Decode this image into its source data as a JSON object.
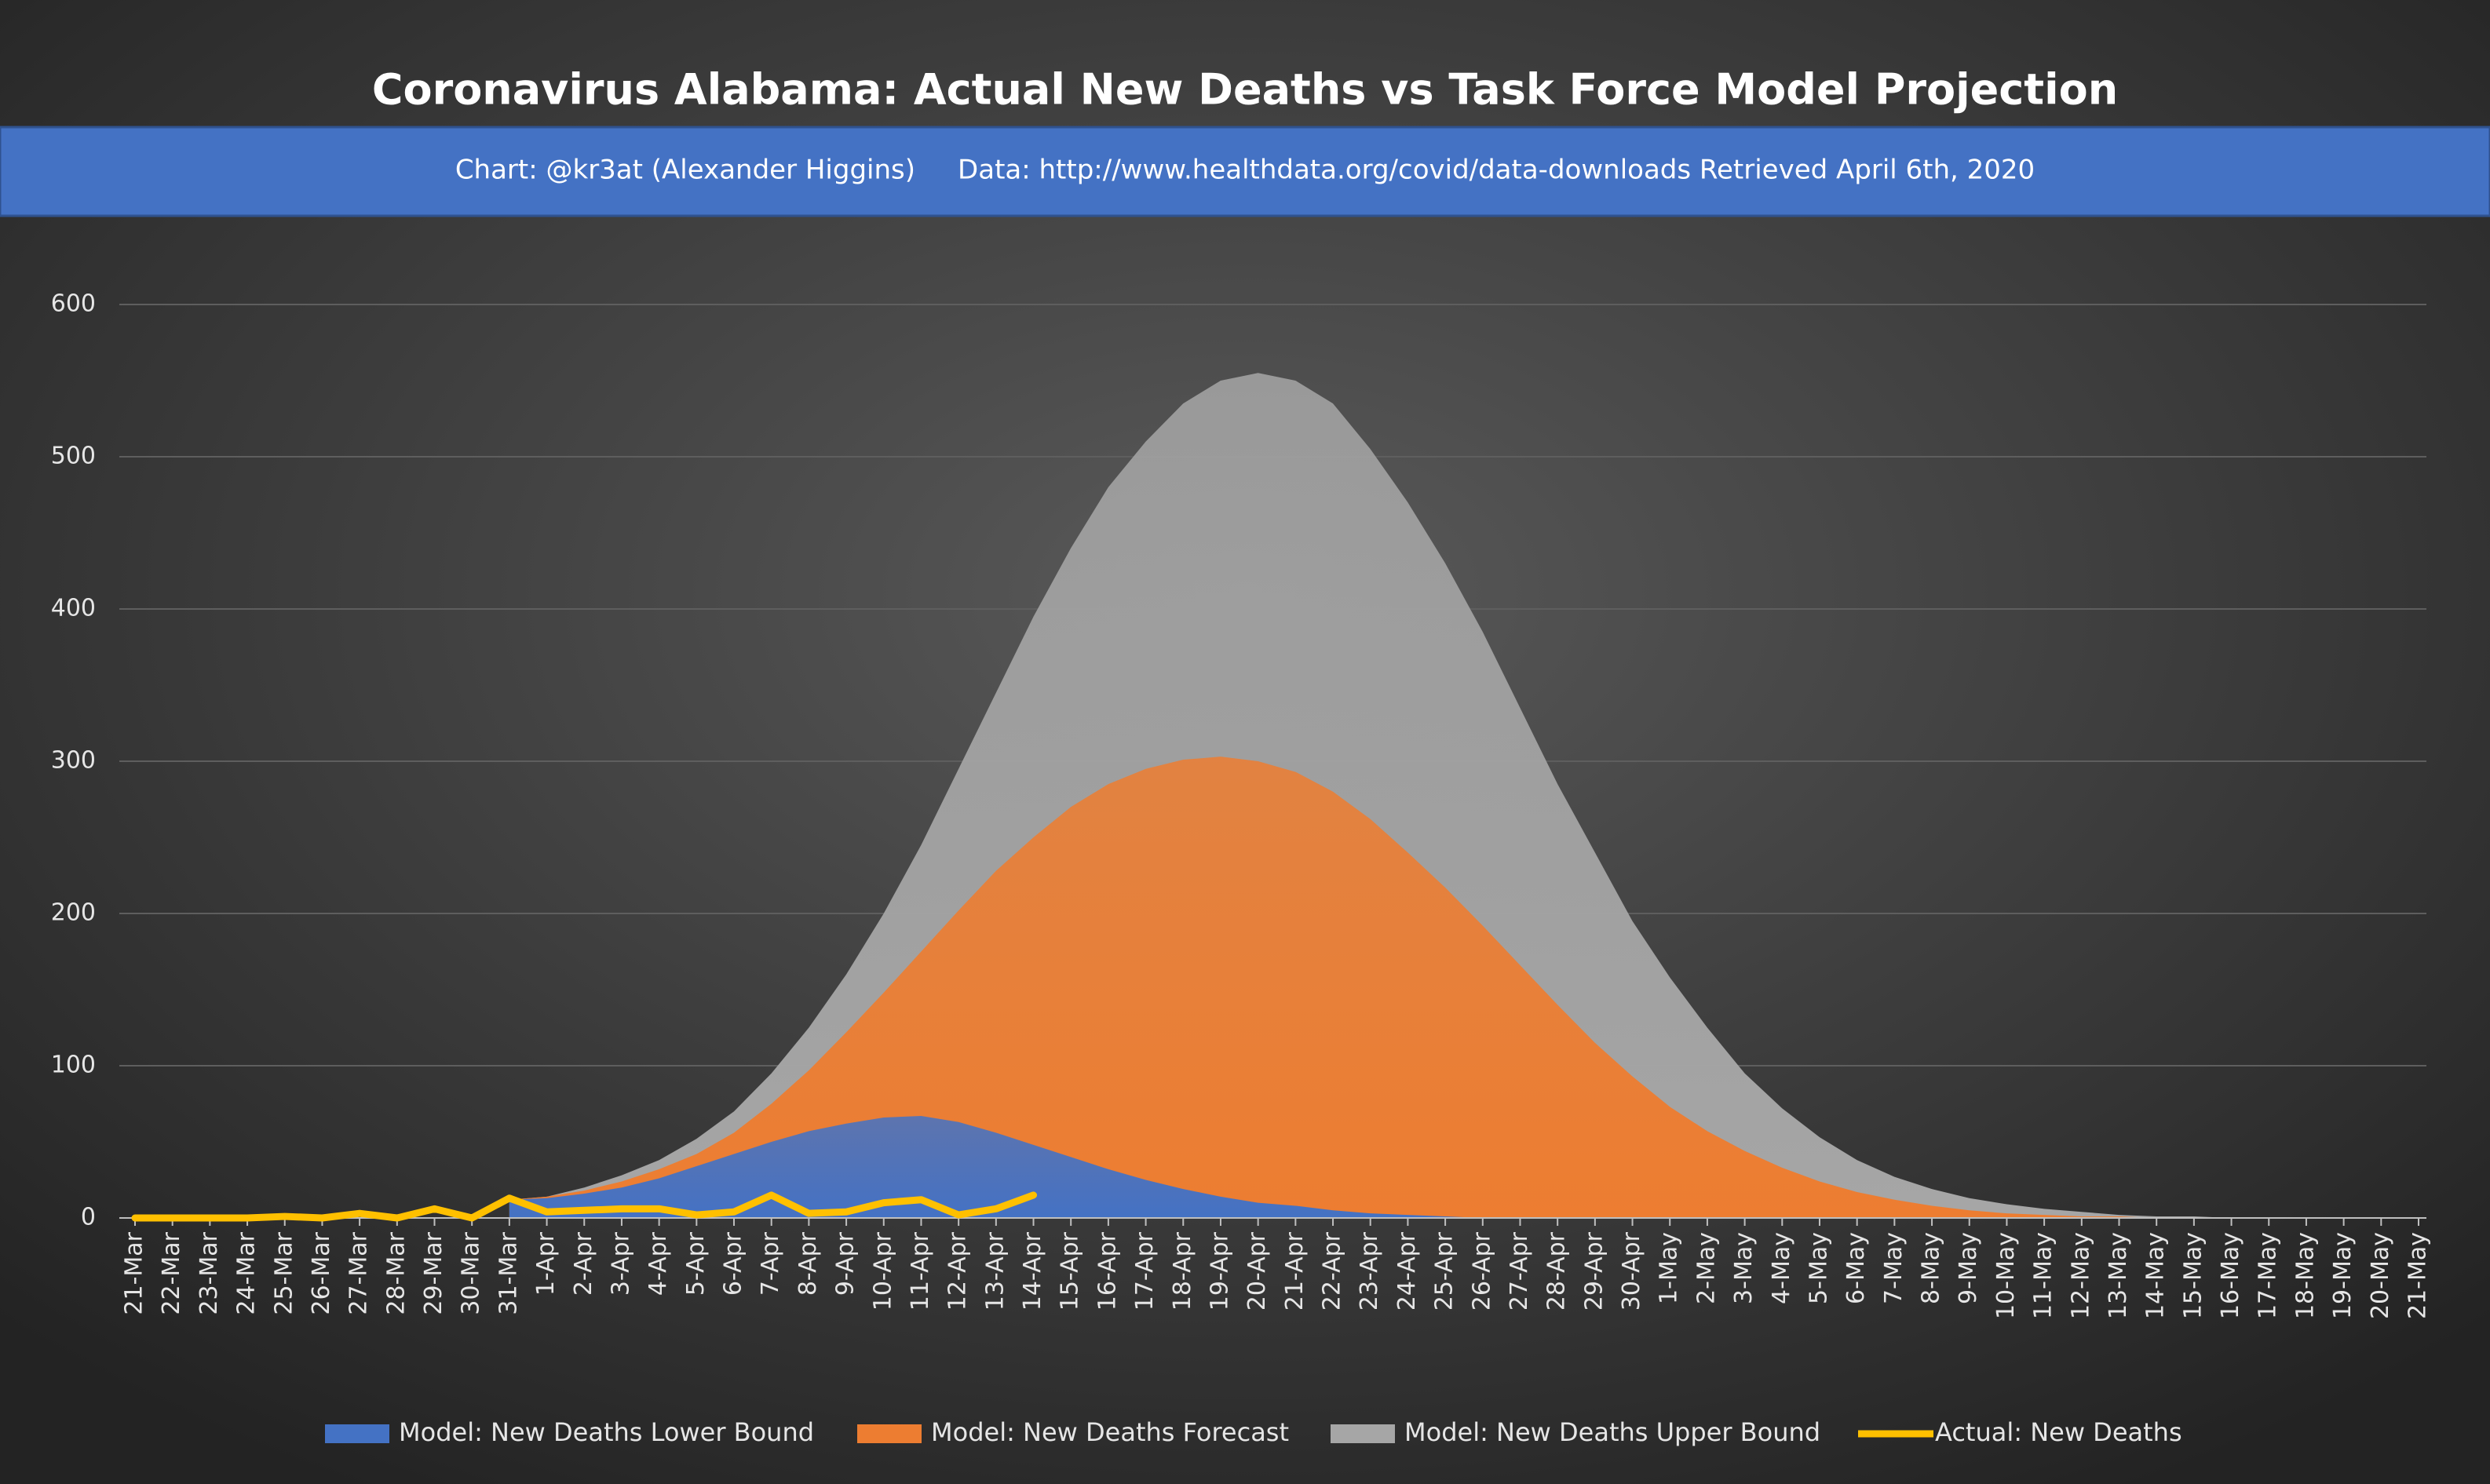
{
  "chart_data": {
    "type": "area",
    "title": "Coronavirus Alabama: Actual New Deaths vs Task Force Model Projection",
    "subtitle": "Chart: @kr3at (Alexander Higgins)     Data: http://www.healthdata.org/covid/data-downloads Retrieved April 6th, 2020",
    "categories": [
      "21-Mar",
      "22-Mar",
      "23-Mar",
      "24-Mar",
      "25-Mar",
      "26-Mar",
      "27-Mar",
      "28-Mar",
      "29-Mar",
      "30-Mar",
      "31-Mar",
      "1-Apr",
      "2-Apr",
      "3-Apr",
      "4-Apr",
      "5-Apr",
      "6-Apr",
      "7-Apr",
      "8-Apr",
      "9-Apr",
      "10-Apr",
      "11-Apr",
      "12-Apr",
      "13-Apr",
      "14-Apr",
      "15-Apr",
      "16-Apr",
      "17-Apr",
      "18-Apr",
      "19-Apr",
      "20-Apr",
      "21-Apr",
      "22-Apr",
      "23-Apr",
      "24-Apr",
      "25-Apr",
      "26-Apr",
      "27-Apr",
      "28-Apr",
      "29-Apr",
      "30-Apr",
      "1-May",
      "2-May",
      "3-May",
      "4-May",
      "5-May",
      "6-May",
      "7-May",
      "8-May",
      "9-May",
      "10-May",
      "11-May",
      "12-May",
      "13-May",
      "14-May",
      "15-May",
      "16-May",
      "17-May",
      "18-May",
      "19-May",
      "20-May",
      "21-May"
    ],
    "series": [
      {
        "name": "Model: New Deaths Lower Bound",
        "type": "area",
        "color": "#4472c4",
        "values": [
          null,
          null,
          null,
          null,
          null,
          null,
          null,
          null,
          null,
          null,
          12,
          13,
          16,
          20,
          26,
          34,
          42,
          50,
          57,
          62,
          66,
          67,
          63,
          56,
          48,
          40,
          32,
          25,
          19,
          14,
          10,
          8,
          5,
          3,
          2,
          1,
          0,
          0,
          0,
          0,
          0,
          0,
          0,
          0,
          0,
          0,
          0,
          0,
          0,
          0,
          0,
          0,
          0,
          0,
          0,
          0,
          0,
          0,
          0,
          0,
          0,
          0
        ]
      },
      {
        "name": "Model: New Deaths Forecast",
        "type": "area",
        "color": "#ed7d31",
        "values": [
          null,
          null,
          null,
          null,
          null,
          null,
          null,
          null,
          null,
          null,
          12,
          14,
          18,
          24,
          32,
          42,
          56,
          75,
          97,
          122,
          148,
          175,
          202,
          228,
          250,
          270,
          285,
          295,
          301,
          303,
          300,
          293,
          280,
          262,
          240,
          217,
          192,
          166,
          140,
          115,
          93,
          73,
          57,
          44,
          33,
          24,
          17,
          12,
          8,
          5,
          3,
          2,
          1,
          1,
          0,
          0,
          0,
          0,
          0,
          0,
          0,
          0
        ]
      },
      {
        "name": "Model: New Deaths Upper Bound",
        "type": "area",
        "color": "#a6a6a6",
        "values": [
          null,
          null,
          null,
          null,
          null,
          null,
          null,
          null,
          null,
          null,
          12,
          14,
          20,
          28,
          38,
          52,
          70,
          95,
          125,
          160,
          200,
          245,
          295,
          345,
          395,
          440,
          480,
          510,
          535,
          550,
          555,
          550,
          535,
          505,
          470,
          430,
          385,
          335,
          285,
          240,
          195,
          158,
          125,
          95,
          72,
          53,
          38,
          27,
          19,
          13,
          9,
          6,
          4,
          2,
          1,
          1,
          0,
          0,
          0,
          0,
          0,
          0
        ]
      },
      {
        "name": "Actual: New Deaths",
        "type": "line",
        "color": "#ffc000",
        "values": [
          0,
          0,
          0,
          0,
          1,
          0,
          3,
          0,
          6,
          0,
          13,
          4,
          5,
          6,
          6,
          2,
          4,
          15,
          3,
          4,
          10,
          12,
          2,
          6,
          15,
          null,
          null,
          null,
          null,
          null,
          null,
          null,
          null,
          null,
          null,
          null,
          null,
          null,
          null,
          null,
          null,
          null,
          null,
          null,
          null,
          null,
          null,
          null,
          null,
          null,
          null,
          null,
          null,
          null,
          null,
          null,
          null,
          null,
          null,
          null,
          null,
          null
        ]
      }
    ],
    "ylim": [
      0,
      620
    ],
    "yticks": [
      0,
      100,
      200,
      300,
      400,
      500,
      600
    ],
    "grid": true,
    "legend": "bottom"
  }
}
